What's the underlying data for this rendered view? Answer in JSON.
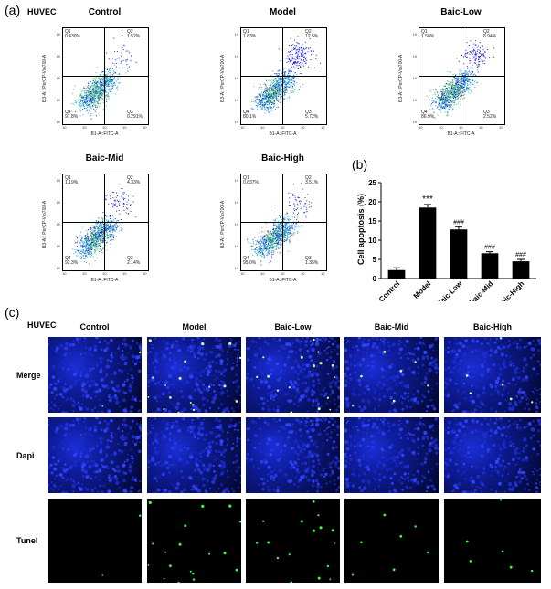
{
  "panel_a": {
    "label": "(a)",
    "cell": "HUVEC",
    "xaxis_label": "B1-A::FITC-A",
    "yaxis_label": "B3-A:: PerCP-Vio700-A",
    "ticks": [
      "10",
      "10",
      "10",
      "10",
      "10"
    ],
    "plots": [
      {
        "title": "Control",
        "q1": "0.430%",
        "q2": "1.52%",
        "q3": "0.291%",
        "q4": "97.8%"
      },
      {
        "title": "Model",
        "q1": "1.63%",
        "q2": "12.5%",
        "q3": "5.72%",
        "q4": "80.1%"
      },
      {
        "title": "Baic-Low",
        "q1": "1.58%",
        "q2": "8.94%",
        "q3": "2.52%",
        "q4": "86.9%"
      },
      {
        "title": "Baic-Mid",
        "q1": "1.19%",
        "q2": "4.33%",
        "q3": "2.14%",
        "q4": "92.3%"
      },
      {
        "title": "Baic-High",
        "q1": "0.637%",
        "q2": "3.51%",
        "q3": "1.35%",
        "q4": "95.0%"
      }
    ]
  },
  "panel_b": {
    "label": "(b)",
    "chart_data": {
      "type": "bar",
      "categories": [
        "Control",
        "Model",
        "Baic-Low",
        "Baic-Mid",
        "Baic-High"
      ],
      "values": [
        2.2,
        18.5,
        12.8,
        6.6,
        4.5
      ],
      "errors": [
        0.6,
        0.8,
        0.7,
        0.4,
        0.5
      ],
      "annotations": [
        "",
        "***",
        "###",
        "###",
        "###"
      ],
      "ylabel": "Cell apoptosis (%)",
      "xlabel": "",
      "ylim": [
        0,
        25
      ],
      "yticks": [
        "0",
        "5",
        "10",
        "15",
        "20",
        "25"
      ],
      "bar_color": "#000000"
    }
  },
  "panel_c": {
    "label": "(c)",
    "cell": "HUVEC",
    "columns": [
      "Control",
      "Model",
      "Baic-Low",
      "Baic-Mid",
      "Baic-High"
    ],
    "rows": [
      "Merge",
      "Dapi",
      "Tunel"
    ]
  }
}
